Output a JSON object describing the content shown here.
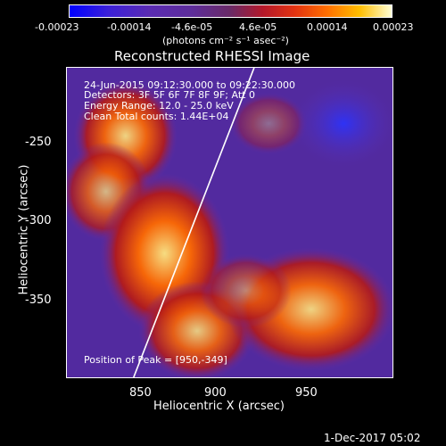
{
  "colorbar": {
    "ticks": [
      "-0.00023",
      "-0.00014",
      "-4.6e-05",
      "4.6e-05",
      "0.00014",
      "0.00023"
    ],
    "units": "(photons cm⁻² s⁻¹ asec⁻²)"
  },
  "plot": {
    "title": "Reconstructed RHESSI Image",
    "info_lines": [
      "24-Jun-2015 09:12:30.000 to 09:22:30.000",
      "Detectors: 3F 5F 6F 7F 8F 9F; Att 0",
      "Energy Range: 12.0 - 25.0 keV",
      "Clean    Total counts: 1.44E+04"
    ],
    "peak_label": "Position of Peak = [950,-349]",
    "xlabel": "Heliocentric X (arcsec)",
    "ylabel": "Heliocentric Y (arcsec)",
    "xticks": [
      "850",
      "900",
      "950"
    ],
    "yticks": [
      "-250",
      "-300",
      "-350"
    ]
  },
  "footer": {
    "date": "1-Dec-2017 05:02"
  }
}
